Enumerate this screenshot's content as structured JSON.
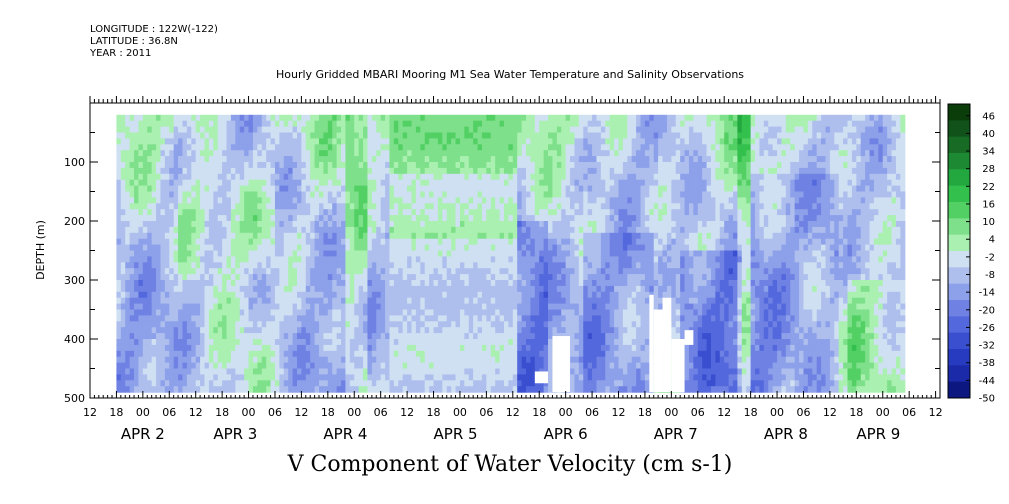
{
  "header": {
    "longitude": "LONGITUDE : 122W(-122)",
    "latitude": "LATITUDE : 36.8N",
    "year": "YEAR : 2011"
  },
  "chart_data": {
    "type": "heatmap",
    "title": "Hourly Gridded MBARI Mooring M1 Sea Water Temperature and Salinity Observations",
    "xlabel": "V Component of Water Velocity (cm s-1)",
    "ylabel": "DEPTH (m)",
    "x_unit": "hours since APR 1 12:00",
    "xlim": [
      0,
      193
    ],
    "data_x_range": [
      6,
      185
    ],
    "ylim": [
      500,
      0
    ],
    "data_y_range": [
      20,
      490
    ],
    "y_ticks": [
      100,
      200,
      300,
      400,
      500
    ],
    "y_minor_step": 50,
    "x_hour_ticks": [
      "12",
      "18",
      "00",
      "06",
      "12",
      "18",
      "00",
      "06",
      "12",
      "18",
      "00",
      "06",
      "12",
      "18",
      "00",
      "06",
      "12",
      "18",
      "00",
      "06",
      "12",
      "18",
      "00",
      "06",
      "12",
      "18",
      "00",
      "06",
      "12",
      "18",
      "00",
      "06",
      "12"
    ],
    "x_day_labels": [
      {
        "label": "APR  2",
        "hour": 12
      },
      {
        "label": "APR  3",
        "hour": 33
      },
      {
        "label": "APR  4",
        "hour": 58
      },
      {
        "label": "APR  5",
        "hour": 83
      },
      {
        "label": "APR  6",
        "hour": 108
      },
      {
        "label": "APR  7",
        "hour": 133
      },
      {
        "label": "APR  8",
        "hour": 158
      },
      {
        "label": "APR  9",
        "hour": 179
      }
    ],
    "colorbar": {
      "min": -50,
      "max": 50,
      "step": 6,
      "labels": [
        "46",
        "40",
        "34",
        "28",
        "22",
        "16",
        "10",
        "4",
        "-2",
        "-8",
        "-14",
        "-20",
        "-26",
        "-32",
        "-38",
        "-44",
        "-50"
      ],
      "colors_high_to_low": [
        "#0b3d0b",
        "#11521a",
        "#176b25",
        "#1d8a33",
        "#23a83f",
        "#33c04d",
        "#52d064",
        "#7ee08a",
        "#aaf0b0",
        "#cfe0f2",
        "#aebfee",
        "#8da0ea",
        "#6f82e4",
        "#5268dc",
        "#394fd0",
        "#263bc0",
        "#1a2aa8",
        "#0d1780"
      ]
    },
    "missing_regions": [
      {
        "x": [
          101,
          104
        ],
        "depth": [
          455,
          475
        ]
      },
      {
        "x": [
          105,
          109
        ],
        "depth": [
          395,
          490
        ]
      },
      {
        "x": [
          127,
          128
        ],
        "depth": [
          325,
          490
        ]
      },
      {
        "x": [
          128,
          130
        ],
        "depth": [
          350,
          490
        ]
      },
      {
        "x": [
          130,
          132
        ],
        "depth": [
          330,
          490
        ]
      },
      {
        "x": [
          132,
          135
        ],
        "depth": [
          400,
          490
        ]
      },
      {
        "x": [
          135,
          137
        ],
        "depth": [
          385,
          410
        ]
      }
    ]
  }
}
